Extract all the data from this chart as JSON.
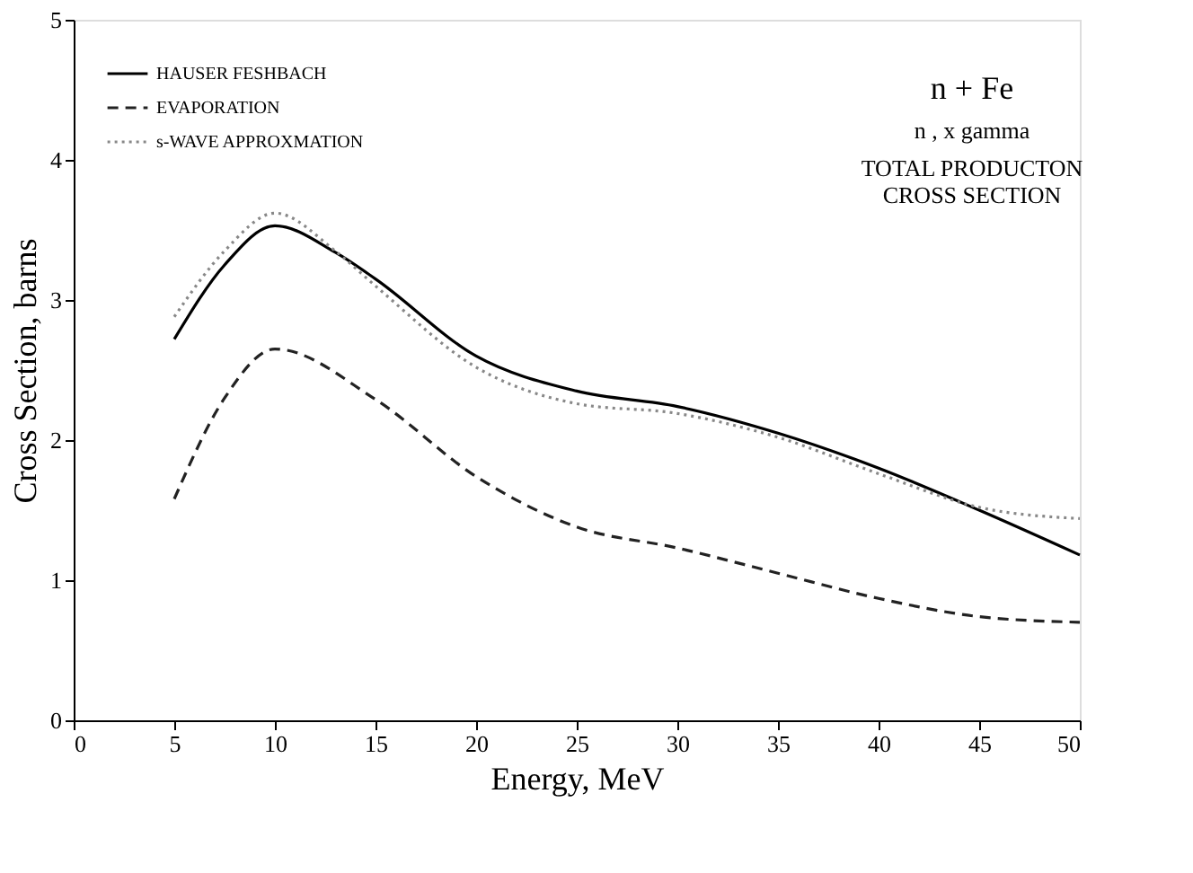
{
  "chart_data": {
    "type": "line",
    "xlabel": "Energy, MeV",
    "ylabel": "Cross Section, barns",
    "xlim": [
      0,
      50
    ],
    "xticks": [
      0,
      5,
      10,
      15,
      20,
      25,
      30,
      35,
      40,
      45,
      50
    ],
    "ylim": [
      0,
      5
    ],
    "yticks": [
      0,
      1,
      2,
      3,
      4,
      5
    ],
    "grid": false,
    "legend": "top left",
    "marker": "none",
    "series": [
      {
        "name": "HAUSER FESHBACH",
        "color": "#000000",
        "line_style": "solid",
        "x": [
          5,
          7.5,
          10,
          13,
          15,
          20,
          25,
          30,
          35,
          40,
          45,
          50
        ],
        "values": [
          2.72,
          3.25,
          3.53,
          3.34,
          3.15,
          2.6,
          2.35,
          2.24,
          2.05,
          1.8,
          1.5,
          1.18
        ]
      },
      {
        "name": "EVAPORATION",
        "color": "#222222",
        "line_style": "dashed",
        "x": [
          5,
          7.5,
          10,
          15,
          20,
          25,
          30,
          35,
          40,
          45,
          50
        ],
        "values": [
          1.58,
          2.3,
          2.65,
          2.29,
          1.74,
          1.38,
          1.23,
          1.05,
          0.87,
          0.74,
          0.7
        ]
      },
      {
        "name": "s-WAVE APPROXMATION",
        "color": "#888888",
        "line_style": "dotted",
        "x": [
          5,
          7.5,
          10,
          13,
          15,
          20,
          25,
          30,
          35,
          40,
          45,
          50
        ],
        "values": [
          2.88,
          3.35,
          3.62,
          3.35,
          3.1,
          2.52,
          2.26,
          2.19,
          2.02,
          1.76,
          1.52,
          1.44
        ]
      }
    ],
    "annotations": [
      "n + Fe",
      "n , x gamma",
      "TOTAL PRODUCTON\nCROSS SECTION"
    ]
  }
}
